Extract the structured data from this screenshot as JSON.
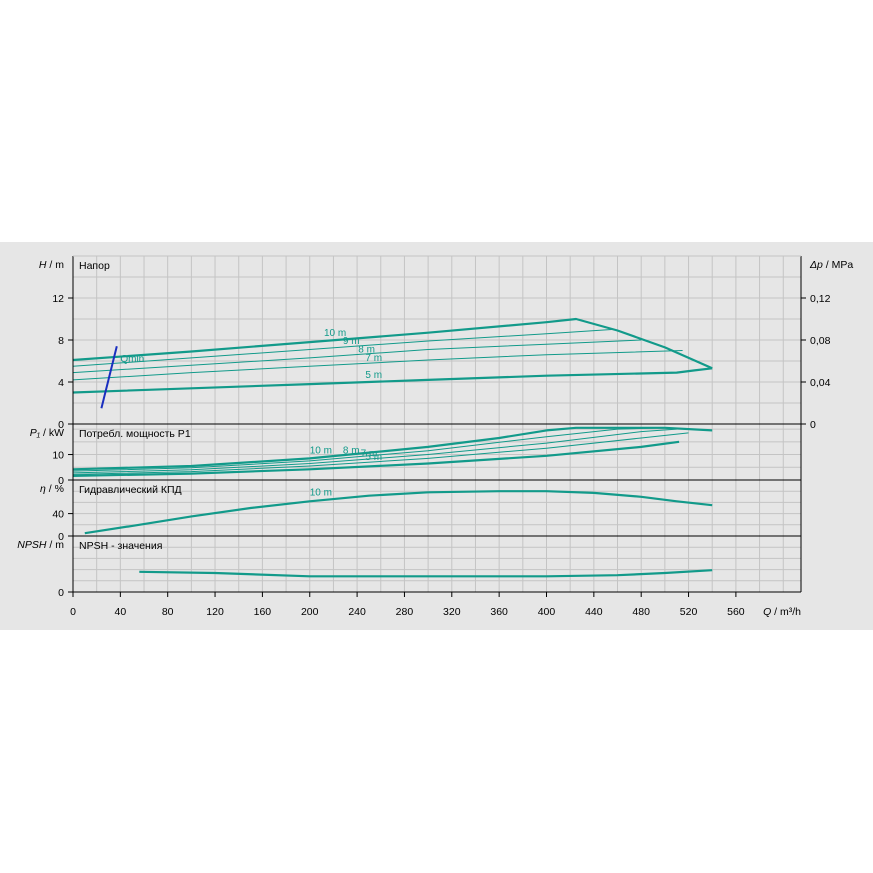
{
  "chart_data": {
    "type": "line",
    "x_axis": {
      "label_symbol": "Q",
      "label_unit": "m³/h",
      "ticks": [
        "0",
        "40",
        "80",
        "120",
        "160",
        "200",
        "240",
        "280",
        "320",
        "360",
        "400",
        "440",
        "480",
        "520",
        "560"
      ],
      "range": [
        0,
        615
      ]
    },
    "colors": {
      "curve": "#129a8a",
      "qmin": "#1a2fbf",
      "grid": "#c4c4c4",
      "panel": "#e6e6e6"
    },
    "panels": [
      {
        "id": "head",
        "title": "Напор",
        "ylabel_symbol": "H",
        "ylabel_unit": "m",
        "ylim": [
          0,
          16
        ],
        "yticks": [
          "0",
          "4",
          "8",
          "12"
        ],
        "right_axis": {
          "symbol": "Δp",
          "unit": "MPa",
          "ticks": [
            "0",
            "0,04",
            "0,08",
            "0,12"
          ]
        },
        "curves": [
          {
            "name": "10 m",
            "bold": true,
            "points": [
              [
                0,
                6.1
              ],
              [
                100,
                6.9
              ],
              [
                200,
                7.8
              ],
              [
                300,
                8.7
              ],
              [
                400,
                9.7
              ],
              [
                425,
                10
              ],
              [
                460,
                8.9
              ],
              [
                500,
                7.3
              ],
              [
                540,
                5.3
              ]
            ],
            "label_at": [
              212,
              8.4
            ]
          },
          {
            "name": "9 m",
            "bold": false,
            "points": [
              [
                0,
                5.5
              ],
              [
                100,
                6.3
              ],
              [
                200,
                7.1
              ],
              [
                300,
                7.9
              ],
              [
                400,
                8.6
              ],
              [
                455,
                9.0
              ]
            ],
            "label_at": [
              228,
              7.6
            ]
          },
          {
            "name": "8 m",
            "bold": false,
            "points": [
              [
                0,
                4.9
              ],
              [
                100,
                5.6
              ],
              [
                200,
                6.3
              ],
              [
                300,
                7.1
              ],
              [
                400,
                7.6
              ],
              [
                480,
                8.0
              ]
            ],
            "label_at": [
              241,
              6.8
            ]
          },
          {
            "name": "7 m",
            "bold": false,
            "points": [
              [
                0,
                4.2
              ],
              [
                100,
                4.9
              ],
              [
                200,
                5.5
              ],
              [
                300,
                6.1
              ],
              [
                400,
                6.6
              ],
              [
                515,
                7.0
              ]
            ],
            "label_at": [
              247,
              6.0
            ]
          },
          {
            "name": "5 m",
            "bold": true,
            "points": [
              [
                0,
                3.0
              ],
              [
                100,
                3.4
              ],
              [
                200,
                3.8
              ],
              [
                300,
                4.2
              ],
              [
                400,
                4.6
              ],
              [
                510,
                4.9
              ],
              [
                525,
                5.1
              ],
              [
                540,
                5.3
              ]
            ],
            "label_at": [
              247,
              4.4
            ]
          }
        ],
        "qmin": {
          "label": "Qmin",
          "points": [
            [
              24,
              1.5
            ],
            [
              37,
              7.4
            ]
          ],
          "label_at": [
            40,
            5.9
          ]
        }
      },
      {
        "id": "power",
        "title": "Потребл. мощность P1",
        "ylabel_symbol": "P₁",
        "ylabel_unit": "kW",
        "ylim": [
          0,
          22
        ],
        "yticks": [
          "0",
          "10"
        ],
        "curves": [
          {
            "name": "10 m",
            "bold": true,
            "points": [
              [
                0,
                4.2
              ],
              [
                100,
                5.5
              ],
              [
                200,
                8.5
              ],
              [
                300,
                13.0
              ],
              [
                360,
                16.5
              ],
              [
                400,
                19.5
              ],
              [
                425,
                20.5
              ],
              [
                500,
                20.5
              ],
              [
                540,
                19.5
              ]
            ],
            "label_at": [
              200,
              10.5
            ]
          },
          {
            "name": "9 m",
            "bold": false,
            "points": [
              [
                0,
                3.5
              ],
              [
                100,
                4.8
              ],
              [
                200,
                7.5
              ],
              [
                300,
                11.5
              ],
              [
                400,
                17.0
              ],
              [
                460,
                20.0
              ],
              [
                500,
                20.5
              ]
            ]
          },
          {
            "name": "8 m",
            "bold": false,
            "points": [
              [
                0,
                2.8
              ],
              [
                100,
                4.0
              ],
              [
                200,
                6.5
              ],
              [
                300,
                10.0
              ],
              [
                400,
                14.5
              ],
              [
                480,
                19.0
              ],
              [
                510,
                20.0
              ]
            ],
            "label_at": [
              228,
              10.5
            ]
          },
          {
            "name": "7 m",
            "bold": false,
            "points": [
              [
                0,
                2.2
              ],
              [
                100,
                3.3
              ],
              [
                200,
                5.5
              ],
              [
                300,
                8.5
              ],
              [
                400,
                12.5
              ],
              [
                480,
                16.5
              ],
              [
                520,
                18.5
              ]
            ],
            "label_at": [
              243,
              9.3
            ]
          },
          {
            "name": "5 m",
            "bold": true,
            "points": [
              [
                0,
                1.6
              ],
              [
                100,
                2.5
              ],
              [
                200,
                4.2
              ],
              [
                300,
                6.5
              ],
              [
                400,
                9.5
              ],
              [
                480,
                13.0
              ],
              [
                512,
                15.0
              ]
            ],
            "label_at": [
              247,
              7.8
            ]
          }
        ]
      },
      {
        "id": "efficiency",
        "title": "Гидравлический КПД",
        "ylabel_symbol": "η",
        "ylabel_unit": "%",
        "ylim": [
          0,
          100
        ],
        "yticks": [
          "0",
          "40"
        ],
        "curves": [
          {
            "name": "10 m",
            "bold": true,
            "points": [
              [
                10,
                5
              ],
              [
                50,
                18
              ],
              [
                100,
                35
              ],
              [
                150,
                50
              ],
              [
                200,
                62
              ],
              [
                250,
                72
              ],
              [
                300,
                78
              ],
              [
                360,
                80
              ],
              [
                400,
                80
              ],
              [
                440,
                77
              ],
              [
                480,
                70
              ],
              [
                510,
                62
              ],
              [
                540,
                55
              ]
            ],
            "label_at": [
              200,
              72
            ]
          }
        ]
      },
      {
        "id": "npsh",
        "title": "NPSH - значения",
        "ylabel_symbol": "NPSH",
        "ylabel_unit": "m",
        "ylim": [
          0,
          10
        ],
        "yticks": [
          "0"
        ],
        "curves": [
          {
            "name": "NPSH",
            "bold": true,
            "points": [
              [
                56,
                3.6
              ],
              [
                120,
                3.4
              ],
              [
                200,
                2.8
              ],
              [
                300,
                2.8
              ],
              [
                400,
                2.8
              ],
              [
                460,
                3.0
              ],
              [
                500,
                3.4
              ],
              [
                540,
                3.9
              ]
            ]
          }
        ]
      }
    ]
  }
}
